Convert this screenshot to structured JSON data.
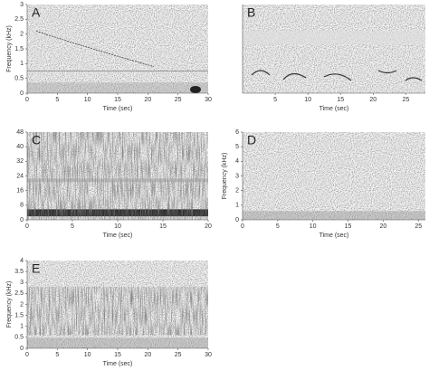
{
  "chart_data": [
    {
      "type": "spectrogram",
      "panel_label": "A",
      "xlabel": "Time (sec)",
      "ylabel": "Frequency (kHz)",
      "xlim": [
        0,
        30
      ],
      "xticks": [
        0,
        5,
        10,
        15,
        20,
        25,
        30
      ],
      "ylim": [
        0,
        3
      ],
      "yticks": [
        0,
        0.5,
        1,
        1.5,
        2,
        2.5,
        3
      ]
    },
    {
      "type": "spectrogram",
      "panel_label": "B",
      "xlabel": "Time (sec)",
      "xlim": [
        0,
        28
      ],
      "xticks": [
        5,
        10,
        15,
        20,
        25
      ]
    },
    {
      "type": "spectrogram",
      "panel_label": "C",
      "xlabel": "Time (sec)",
      "xlim": [
        0,
        20
      ],
      "xticks": [
        0,
        5,
        10,
        15,
        20
      ],
      "ylim": [
        0,
        48
      ],
      "yticks": [
        0,
        8,
        16,
        24,
        32,
        40,
        48
      ]
    },
    {
      "type": "spectrogram",
      "panel_label": "D",
      "xlabel": "Time (sec)",
      "ylabel": "Frequency (kHz)",
      "xlim": [
        0,
        26
      ],
      "xticks": [
        0,
        5,
        10,
        15,
        20,
        25
      ],
      "ylim": [
        0,
        6
      ],
      "yticks": [
        0,
        1,
        2,
        3,
        4,
        5,
        6
      ]
    },
    {
      "type": "spectrogram",
      "panel_label": "E",
      "xlabel": "Time (sec)",
      "ylabel": "Frequency (kHz)",
      "xlim": [
        0,
        30
      ],
      "xticks": [
        0,
        5,
        10,
        15,
        20,
        25,
        30
      ],
      "ylim": [
        0,
        4
      ],
      "yticks": [
        0,
        0.5,
        1,
        1.5,
        2,
        2.5,
        3,
        3.5,
        4
      ]
    }
  ]
}
